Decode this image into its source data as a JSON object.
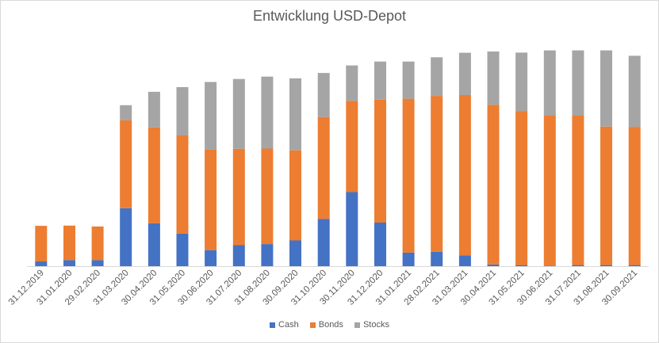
{
  "chart_data": {
    "type": "bar",
    "stacked": true,
    "title": "Entwicklung USD-Depot",
    "xlabel": "",
    "ylabel": "",
    "ylim": [
      0,
      100
    ],
    "grid": false,
    "legend_position": "bottom",
    "categories": [
      "31.12.2019",
      "31.01.2020",
      "29.02.2020",
      "31.03.2020",
      "30.04.2020",
      "31.05.2020",
      "30.06.2020",
      "31.07.2020",
      "31.08.2020",
      "30.09.2020",
      "31.10.2020",
      "30.11.2020",
      "31.12.2020",
      "31.01.2021",
      "28.02.2021",
      "31.03.2021",
      "30.04.2021",
      "31.05.2021",
      "30.06.2021",
      "31.07.2021",
      "31.08.2021",
      "30.09.2021"
    ],
    "series": [
      {
        "name": "Cash",
        "color": "#4472C4",
        "values": [
          2.2,
          2.8,
          2.8,
          27.0,
          20.0,
          15.2,
          7.5,
          9.8,
          10.3,
          12.0,
          22.0,
          34.5,
          20.3,
          6.3,
          6.7,
          5.0,
          0.8,
          0.5,
          0.2,
          0.5,
          0.5,
          0.5
        ]
      },
      {
        "name": "Bonds",
        "color": "#ED7D31",
        "values": [
          16.6,
          16.1,
          15.7,
          41.0,
          44.7,
          45.7,
          46.8,
          44.9,
          44.5,
          42.0,
          47.5,
          42.5,
          57.3,
          71.7,
          72.6,
          74.7,
          74.4,
          71.8,
          69.9,
          69.6,
          64.5,
          64.4
        ]
      },
      {
        "name": "Stocks",
        "color": "#A5A5A5",
        "values": [
          0,
          0,
          0,
          7.0,
          16.5,
          22.5,
          31.5,
          32.5,
          33.5,
          33.5,
          20.5,
          16.5,
          17.7,
          17.3,
          18.0,
          19.7,
          24.8,
          27.2,
          30.4,
          30.4,
          35.5,
          33.1
        ]
      }
    ]
  }
}
